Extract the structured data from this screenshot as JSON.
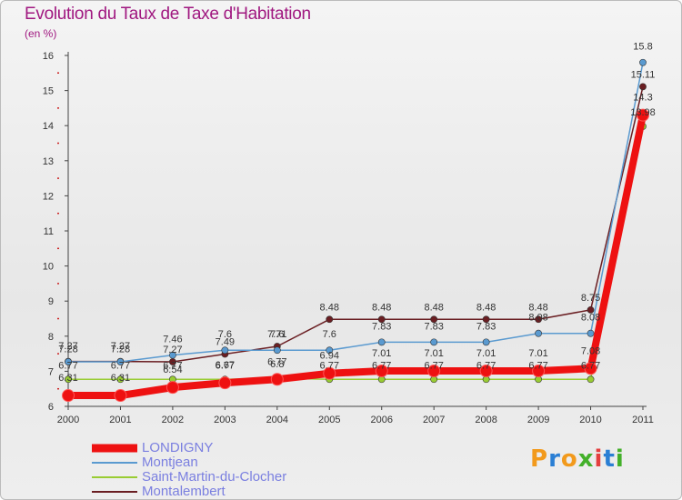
{
  "title": "Evolution du Taux de Taxe d'Habitation",
  "subtitle": "(en %)",
  "logo": {
    "text": "Proxiti",
    "colors": [
      "#f29a1c",
      "#2b7fd4",
      "#f29a1c",
      "#43b02a",
      "#e43f3f",
      "#2b7fd4",
      "#43b02a"
    ]
  },
  "chart_data": {
    "type": "line",
    "title": "Evolution du Taux de Taxe d'Habitation",
    "ylabel": "(en %)",
    "xlabel": "",
    "x": [
      "2000",
      "2001",
      "2002",
      "2003",
      "2004",
      "2005",
      "2006",
      "2007",
      "2008",
      "2009",
      "2010",
      "2011"
    ],
    "ylim": [
      6,
      16
    ],
    "yticks": [
      "6",
      "7",
      "8",
      "9",
      "10",
      "11",
      "12",
      "13",
      "14",
      "15",
      "16"
    ],
    "grid": false,
    "legend_position": "bottom-left",
    "series": [
      {
        "name": "LONDIGNY",
        "color": "#ee1111",
        "values": [
          6.31,
          6.31,
          6.54,
          6.67,
          6.77,
          6.94,
          7.01,
          7.01,
          7.01,
          7.01,
          7.08,
          14.3
        ],
        "labels": [
          "6.31",
          "6.31",
          "6.54",
          "6.67",
          "6.77",
          "6.94",
          "7.01",
          "7.01",
          "7.01",
          "7.01",
          "7.08",
          "14.3"
        ]
      },
      {
        "name": "Montjean",
        "color": "#5a9ad0",
        "values": [
          7.27,
          7.27,
          7.46,
          7.6,
          7.6,
          7.6,
          7.83,
          7.83,
          7.83,
          8.08,
          8.08,
          15.8
        ],
        "labels": [
          "7.27",
          "7.27",
          "7.46",
          "7.6",
          "7.6",
          "7.6",
          "7.83",
          "7.83",
          "7.83",
          "8.08",
          "8.08",
          "15.8"
        ]
      },
      {
        "name": "Saint-Martin-du-Clocher",
        "color": "#99cc33",
        "values": [
          6.77,
          6.77,
          6.77,
          6.77,
          6.8,
          6.77,
          6.77,
          6.77,
          6.77,
          6.77,
          6.77,
          13.98
        ],
        "labels": [
          "6.77",
          "6.77",
          "6.77",
          "6.77",
          "6.8",
          "6.77",
          "6.77",
          "6.77",
          "6.77",
          "6.77",
          "6.77",
          "13.98"
        ]
      },
      {
        "name": "Montalembert",
        "color": "#6a1e22",
        "values": [
          7.28,
          7.28,
          7.27,
          7.49,
          7.71,
          8.48,
          8.48,
          8.48,
          8.48,
          8.48,
          8.75,
          15.11
        ],
        "labels": [
          "7.28",
          "7.28",
          "7.27",
          "7.49",
          "7.71",
          "8.48",
          "8.48",
          "8.48",
          "8.48",
          "8.48",
          "8.75",
          "15.11"
        ]
      }
    ]
  }
}
